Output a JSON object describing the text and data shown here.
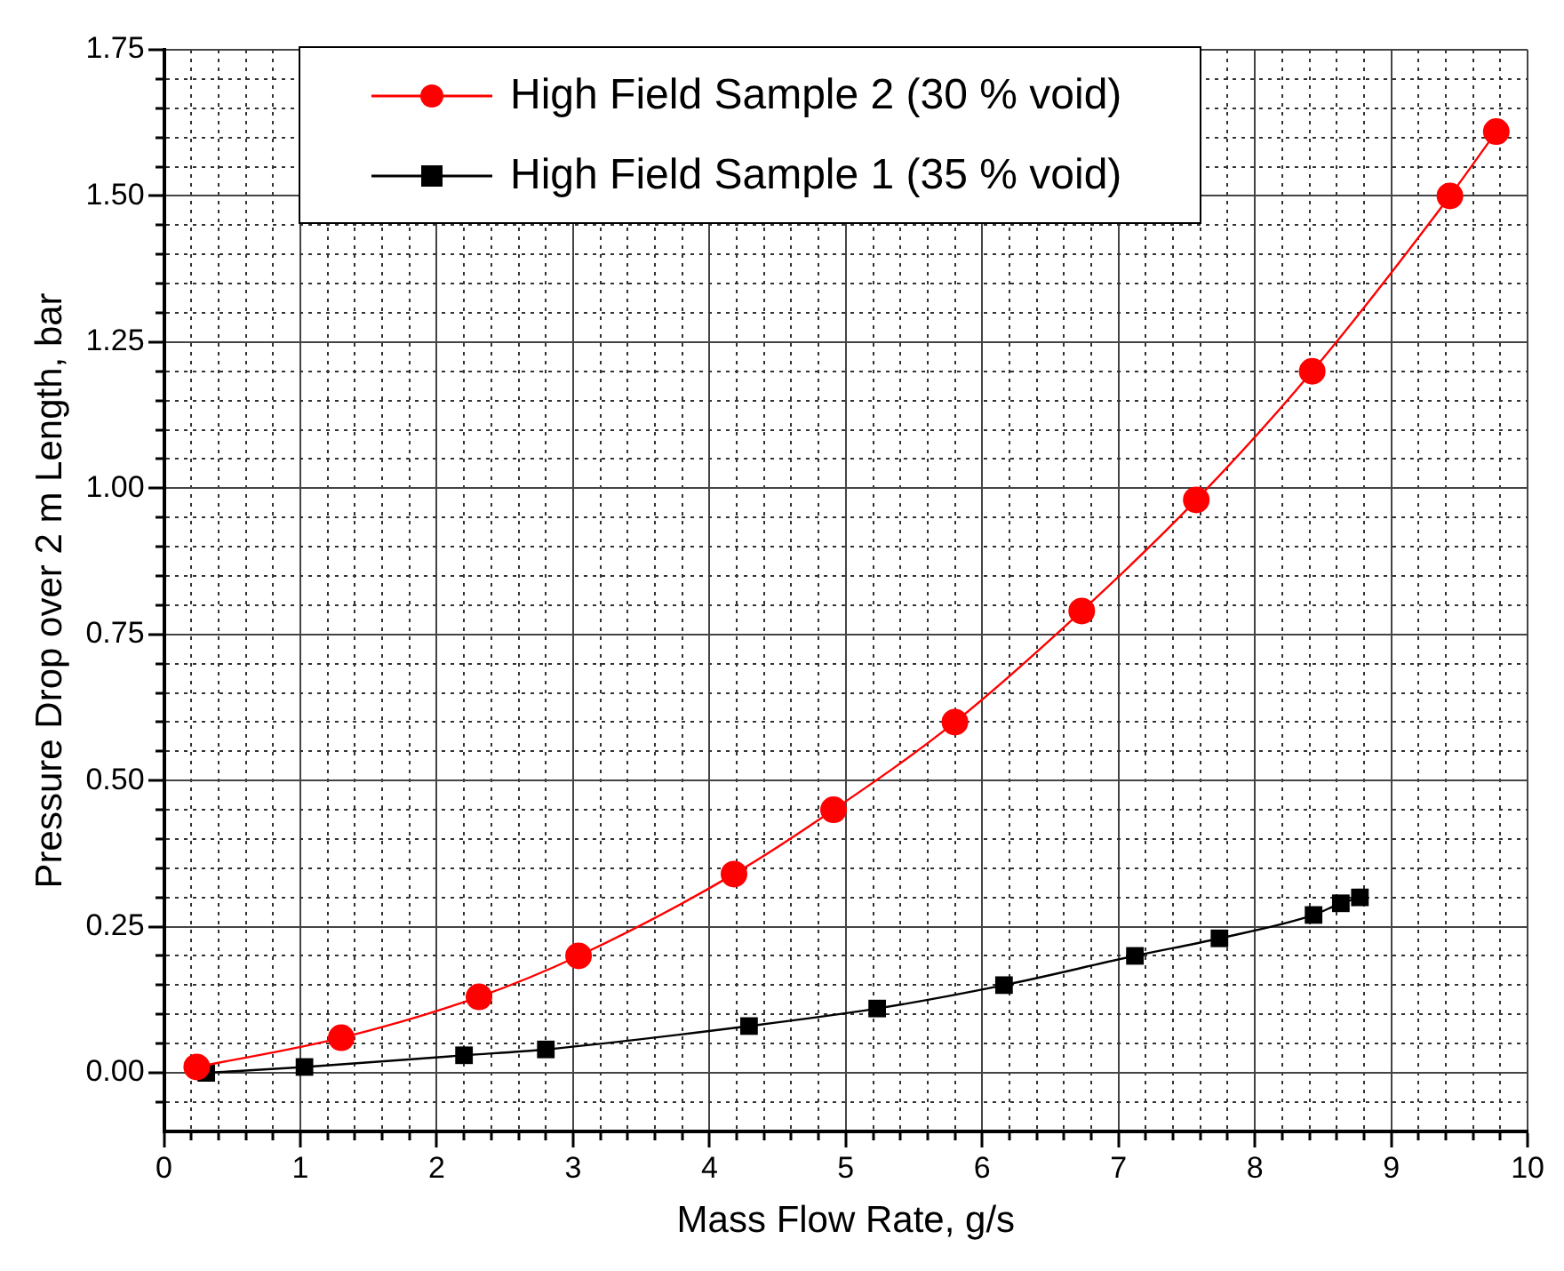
{
  "chart_data": {
    "type": "line",
    "xlabel": "Mass Flow Rate, g/s",
    "ylabel": "Pressure Drop over 2 m Length, bar",
    "series": [
      {
        "name": "High Field Sample 2 (30 % void)",
        "color": "#ff0000",
        "marker": "circle",
        "x": [
          0.24,
          1.3,
          2.31,
          3.04,
          4.18,
          4.91,
          5.8,
          6.73,
          7.57,
          8.42,
          9.43,
          9.77
        ],
        "values": [
          0.01,
          0.06,
          0.13,
          0.2,
          0.34,
          0.45,
          0.6,
          0.79,
          0.98,
          1.2,
          1.5,
          1.61
        ]
      },
      {
        "name": "High Field Sample 1 (35 % void)",
        "color": "#000000",
        "marker": "square",
        "x": [
          0.31,
          1.03,
          2.2,
          2.8,
          4.29,
          5.23,
          6.16,
          7.12,
          7.74,
          8.43,
          8.63,
          8.77
        ],
        "values": [
          0,
          0.01,
          0.03,
          0.04,
          0.08,
          0.11,
          0.15,
          0.2,
          0.23,
          0.27,
          0.29,
          0.3
        ]
      }
    ],
    "xlim": [
      0,
      10
    ],
    "xticks": [
      0,
      {
        "value": 0.2,
        "label": null
      },
      {
        "value": 0.4,
        "label": null
      },
      {
        "value": 0.6,
        "label": null
      },
      {
        "value": 0.8,
        "label": null
      },
      1,
      {
        "value": 1.2,
        "label": null
      },
      {
        "value": 1.4,
        "label": null
      },
      {
        "value": 1.6,
        "label": null
      },
      {
        "value": 1.8,
        "label": null
      },
      2,
      {
        "value": 2.2,
        "label": null
      },
      {
        "value": 2.4,
        "label": null
      },
      {
        "value": 2.6,
        "label": null
      },
      {
        "value": 2.8,
        "label": null
      },
      3,
      {
        "value": 3.2,
        "label": null
      },
      {
        "value": 3.4,
        "label": null
      },
      {
        "value": 3.6,
        "label": null
      },
      {
        "value": 3.8,
        "label": null
      },
      4,
      {
        "value": 4.2,
        "label": null
      },
      {
        "value": 4.4,
        "label": null
      },
      {
        "value": 4.6,
        "label": null
      },
      {
        "value": 4.8,
        "label": null
      },
      5,
      {
        "value": 5.2,
        "label": null
      },
      {
        "value": 5.4,
        "label": null
      },
      {
        "value": 5.6,
        "label": null
      },
      {
        "value": 5.8,
        "label": null
      },
      6,
      {
        "value": 6.2,
        "label": null
      },
      {
        "value": 6.4,
        "label": null
      },
      {
        "value": 6.6,
        "label": null
      },
      {
        "value": 6.8,
        "label": null
      },
      7,
      {
        "value": 7.2,
        "label": null
      },
      {
        "value": 7.4,
        "label": null
      },
      {
        "value": 7.6,
        "label": null
      },
      {
        "value": 7.8,
        "label": null
      },
      8,
      {
        "value": 8.2,
        "label": null
      },
      {
        "value": 8.4,
        "label": null
      },
      {
        "value": 8.6,
        "label": null
      },
      {
        "value": 8.8,
        "label": null
      },
      9,
      {
        "value": 9.2,
        "label": null
      },
      {
        "value": 9.4,
        "label": null
      },
      {
        "value": 9.6,
        "label": null
      },
      {
        "value": 9.8,
        "label": null
      },
      10
    ],
    "ylim": [
      -0.1,
      1.75
    ],
    "yticks": [
      {
        "value": -0.05,
        "label": null
      },
      "0.00",
      {
        "value": 0.05,
        "label": null
      },
      {
        "value": 0.1,
        "label": null
      },
      {
        "value": 0.15,
        "label": null
      },
      {
        "value": 0.2,
        "label": null
      },
      {
        "value": 0.25,
        "label": "0.25"
      },
      {
        "value": 0.3,
        "label": null
      },
      {
        "value": 0.35,
        "label": null
      },
      {
        "value": 0.4,
        "label": null
      },
      {
        "value": 0.45,
        "label": null
      },
      {
        "value": 0.5,
        "label": "0.50"
      },
      {
        "value": 0.55,
        "label": null
      },
      {
        "value": 0.6,
        "label": null
      },
      {
        "value": 0.65,
        "label": null
      },
      {
        "value": 0.7,
        "label": null
      },
      {
        "value": 0.75,
        "label": "0.75"
      },
      {
        "value": 0.8,
        "label": null
      },
      {
        "value": 0.85,
        "label": null
      },
      {
        "value": 0.9,
        "label": null
      },
      {
        "value": 0.95,
        "label": null
      },
      {
        "value": 1,
        "label": "1.00"
      },
      {
        "value": 1.05,
        "label": null
      },
      {
        "value": 1.1,
        "label": null
      },
      {
        "value": 1.15,
        "label": null
      },
      {
        "value": 1.2,
        "label": null
      },
      {
        "value": 1.25,
        "label": "1.25"
      },
      {
        "value": 1.3,
        "label": null
      },
      {
        "value": 1.35,
        "label": null
      },
      {
        "value": 1.4,
        "label": null
      },
      {
        "value": 1.45,
        "label": null
      },
      {
        "value": 1.5,
        "label": "1.50"
      },
      {
        "value": 1.55,
        "label": null
      },
      {
        "value": 1.6,
        "label": null
      },
      {
        "value": 1.65,
        "label": null
      },
      {
        "value": 1.7,
        "label": null
      },
      {
        "value": 1.75,
        "label": "1.75"
      }
    ],
    "grid": true,
    "legend": "top",
    "line_style": "solid"
  }
}
